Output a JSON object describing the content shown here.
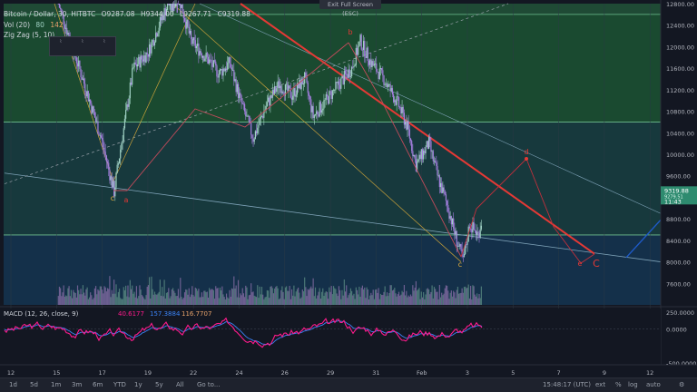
{
  "header": {
    "symbol": "Bitcoin / Dollar, 30, HITBTC",
    "ohlc": {
      "o": "O9287.08",
      "h": "H9344.00",
      "l": "L9267.71",
      "c": "C9319.88"
    },
    "vol_label": "Vol (20)",
    "vol_v1": "80",
    "vol_v2": "142",
    "zigzag_label": "Zig Zag (5, 10)",
    "fullscreen": "Exit Full Screen (ESC)"
  },
  "chart_data": [
    {
      "type": "candlestick",
      "title": "Bitcoin / Dollar, 30, HITBTC",
      "ylim": [
        7200,
        12800
      ],
      "yticks": [
        7600,
        8000,
        8400,
        8800,
        9200,
        9600,
        10000,
        10400,
        10800,
        11200,
        11600,
        12000,
        12400,
        12800
      ],
      "xtick_labels": [
        "12",
        "15",
        "17",
        "19",
        "22",
        "24",
        "26",
        "29",
        "31",
        "Feb",
        "3",
        "5",
        "7",
        "9",
        "12"
      ],
      "last_price": "9319.88",
      "last_price_sub": "9279.51",
      "countdown": "11:43",
      "zigzag_labels": [
        "c",
        "a",
        "b",
        "c",
        "d",
        "e",
        "C"
      ],
      "path_points": [
        {
          "day": 14.3,
          "price": 12800
        },
        {
          "day": 15.6,
          "price": 11200
        },
        {
          "day": 16.3,
          "price": 10300
        },
        {
          "day": 16.9,
          "price": 9300
        },
        {
          "day": 17.2,
          "price": 10100
        },
        {
          "day": 17.8,
          "price": 11600
        },
        {
          "day": 18.5,
          "price": 11900
        },
        {
          "day": 19.2,
          "price": 12600
        },
        {
          "day": 19.8,
          "price": 13100
        },
        {
          "day": 20.5,
          "price": 12100
        },
        {
          "day": 21.2,
          "price": 11800
        },
        {
          "day": 21.8,
          "price": 11500
        },
        {
          "day": 22.3,
          "price": 11700
        },
        {
          "day": 22.8,
          "price": 11000
        },
        {
          "day": 23.4,
          "price": 10300
        },
        {
          "day": 24.0,
          "price": 10900
        },
        {
          "day": 24.6,
          "price": 11300
        },
        {
          "day": 25.2,
          "price": 11100
        },
        {
          "day": 25.8,
          "price": 11400
        },
        {
          "day": 26.2,
          "price": 10700
        },
        {
          "day": 26.8,
          "price": 11000
        },
        {
          "day": 27.4,
          "price": 11300
        },
        {
          "day": 28.0,
          "price": 11600
        },
        {
          "day": 28.4,
          "price": 12100
        },
        {
          "day": 28.9,
          "price": 11700
        },
        {
          "day": 29.5,
          "price": 11400
        },
        {
          "day": 30.2,
          "price": 10900
        },
        {
          "day": 30.6,
          "price": 10500
        },
        {
          "day": 31.0,
          "price": 9800
        },
        {
          "day": 31.6,
          "price": 10200
        },
        {
          "day": 32.0,
          "price": 9600
        },
        {
          "day": 32.5,
          "price": 9000
        },
        {
          "day": 32.9,
          "price": 8400
        },
        {
          "day": 33.2,
          "price": 8000
        },
        {
          "day": 33.5,
          "price": 8700
        },
        {
          "day": 33.9,
          "price": 8500
        },
        {
          "day": 34.2,
          "price": 9000
        },
        {
          "day": 34.6,
          "price": 9300
        }
      ],
      "bands": [
        {
          "from": 12600,
          "to": 12800,
          "color": "#1f4a35"
        },
        {
          "from": 10600,
          "to": 12600,
          "color": "#1a4a30"
        },
        {
          "from": 8500,
          "to": 10600,
          "color": "#17393d"
        },
        {
          "from": 7200,
          "to": 8500,
          "color": "#14304a"
        }
      ]
    },
    {
      "type": "line",
      "title": "MACD (12, 26, close, 9)",
      "values_text": [
        "40.6177",
        "157.3884",
        "116.7707"
      ],
      "ylim": [
        -500,
        250
      ],
      "yticks": [
        "250.0000",
        "0.0000",
        "-500.0000"
      ]
    }
  ],
  "colors": {
    "background": "#131722",
    "up": "#9fd0c3",
    "down": "#a57fe0",
    "zigzag_red": "#e53935",
    "macd_line": "#ff1a8c",
    "signal_line": "#3b83f5",
    "trend_blue": "#1e5ac8"
  },
  "bottombar": {
    "timeframes": [
      "1d",
      "5d",
      "1m",
      "3m",
      "6m",
      "YTD",
      "1y",
      "5y",
      "All",
      "Go to..."
    ],
    "clock": "15:48:17 (UTC)",
    "buttons": [
      "ext",
      "%",
      "log",
      "auto"
    ]
  }
}
